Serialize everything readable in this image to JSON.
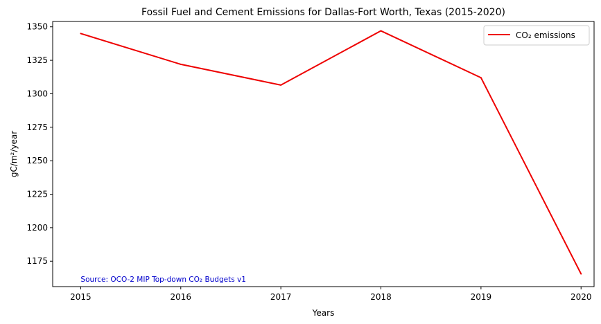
{
  "chart_data": {
    "type": "line",
    "title": "Fossil Fuel and Cement Emissions for Dallas-Fort Worth, Texas (2015-2020)",
    "xlabel": "Years",
    "ylabel": "gC/m²/year",
    "x": [
      2015,
      2016,
      2017,
      2018,
      2019,
      2020
    ],
    "series": [
      {
        "name": "CO₂ emissions",
        "color": "#ee0000",
        "values": [
          1345,
          1322,
          1306.5,
          1347,
          1312,
          1165.5
        ]
      }
    ],
    "xlim": [
      2014.72,
      2020.13
    ],
    "ylim": [
      1156,
      1354
    ],
    "xticks": [
      2015,
      2016,
      2017,
      2018,
      2019,
      2020
    ],
    "yticks": [
      1175,
      1200,
      1225,
      1250,
      1275,
      1300,
      1325,
      1350
    ],
    "grid": false,
    "legend_position": "top-right",
    "annotation": {
      "text": "Source: OCO-2 MIP Top-down CO₂ Budgets v1",
      "color": "#0000cc"
    }
  }
}
